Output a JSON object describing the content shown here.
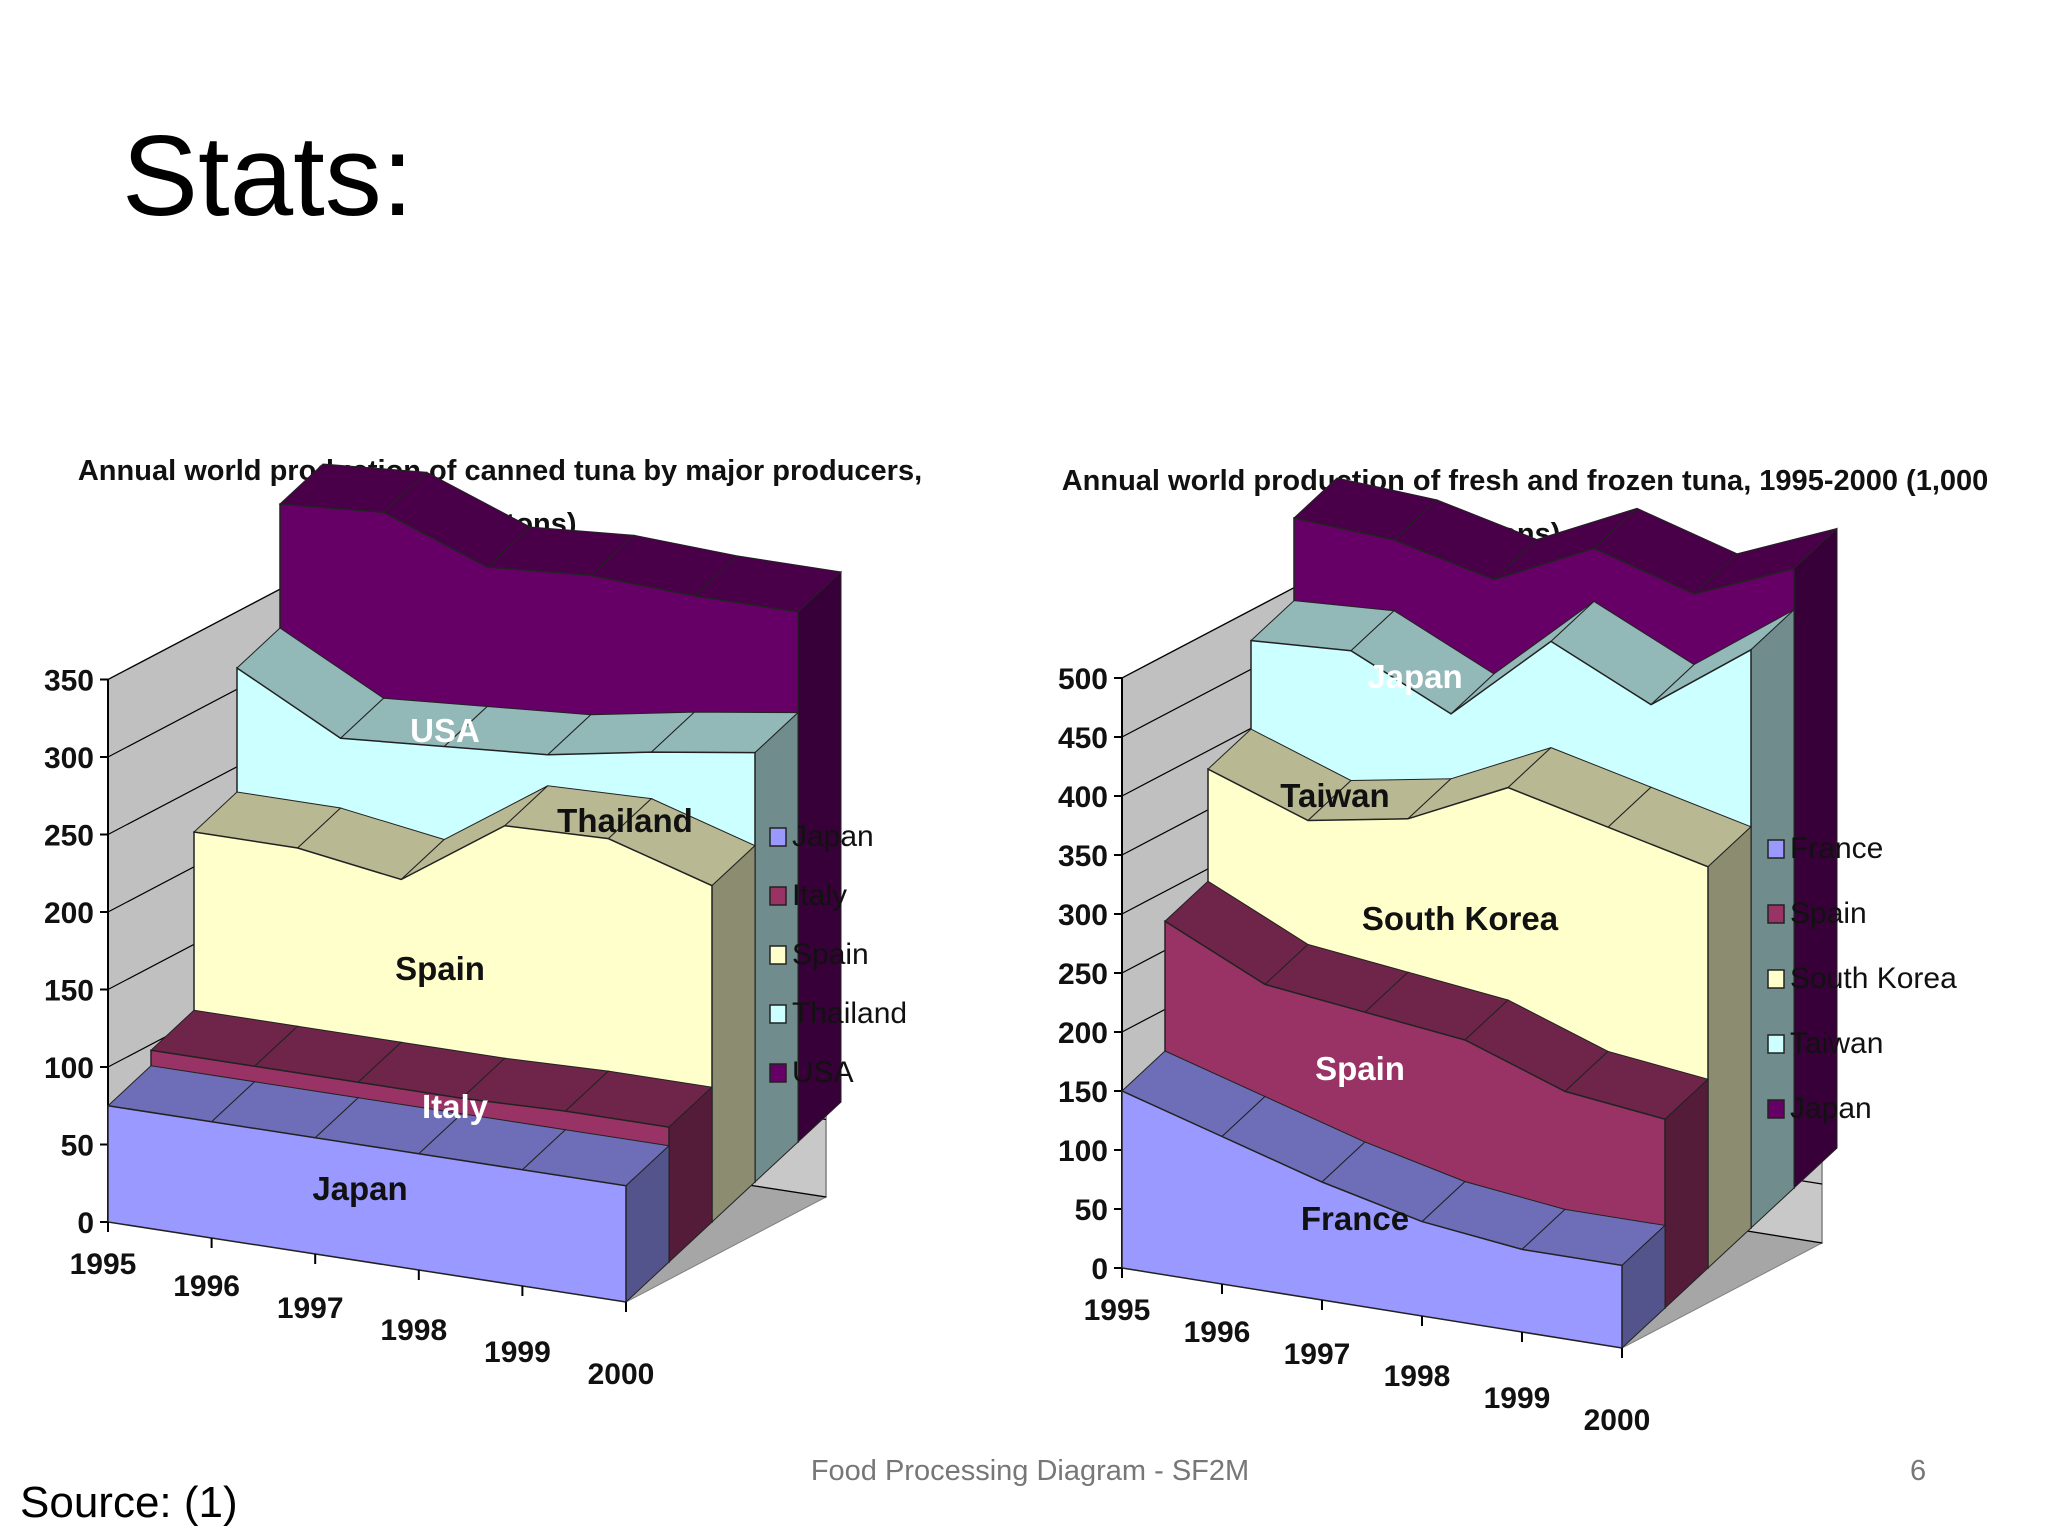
{
  "slide": {
    "title": "Stats:",
    "footer": "Food Processing Diagram - SF2M",
    "page_number": "6",
    "source": "Source: (1)"
  },
  "chart_data": [
    {
      "type": "area",
      "variant": "3d-stacked-area",
      "title": "Annual world production of canned tuna by major producers, (1000 tons)",
      "x": [
        "1995",
        "1996",
        "1997",
        "1998",
        "1999",
        "2000"
      ],
      "ylim": [
        0,
        350
      ],
      "yticks": [
        "0",
        "50",
        "100",
        "150",
        "200",
        "250",
        "300",
        "350"
      ],
      "grid": true,
      "legend_position": "right",
      "series": [
        {
          "name": "Japan",
          "color": "#9999ff",
          "values": [
            75,
            75,
            75,
            75,
            75,
            75
          ]
        },
        {
          "name": "Italy",
          "color": "#993366",
          "values": [
            10,
            10,
            10,
            10,
            12,
            12
          ]
        },
        {
          "name": "Spain",
          "color": "#ffffcc",
          "values": [
            115,
            115,
            105,
            150,
            150,
            130
          ]
        },
        {
          "name": "Thailand",
          "color": "#ccffff",
          "values": [
            80,
            45,
            60,
            20,
            30,
            60
          ]
        },
        {
          "name": "USA",
          "color": "#660066",
          "values": [
            80,
            120,
            90,
            90,
            75,
            65
          ]
        }
      ],
      "area_labels": [
        "Japan",
        "Italy",
        "Spain",
        "Thailand",
        "USA"
      ]
    },
    {
      "type": "area",
      "variant": "3d-stacked-area",
      "title": "Annual world production of fresh and frozen tuna, 1995-2000 (1,000 tons)",
      "x": [
        "1995",
        "1996",
        "1997",
        "1998",
        "1999",
        "2000"
      ],
      "ylim": [
        0,
        500
      ],
      "yticks": [
        "0",
        "50",
        "100",
        "150",
        "200",
        "250",
        "300",
        "350",
        "400",
        "450",
        "500"
      ],
      "grid": true,
      "legend_position": "right",
      "series": [
        {
          "name": "France",
          "color": "#9999ff",
          "values": [
            150,
            125,
            100,
            80,
            70,
            70
          ]
        },
        {
          "name": "Spain",
          "color": "#993366",
          "values": [
            110,
            95,
            110,
            120,
            100,
            90
          ]
        },
        {
          "name": "South Korea",
          "color": "#ffffcc",
          "values": [
            95,
            105,
            130,
            180,
            190,
            180
          ]
        },
        {
          "name": "Taiwan",
          "color": "#ccffff",
          "values": [
            75,
            110,
            55,
            90,
            70,
            150
          ]
        },
        {
          "name": "Japan",
          "color": "#660066",
          "values": [
            70,
            60,
            80,
            45,
            60,
            35
          ]
        }
      ],
      "area_labels": [
        "Japan",
        "Taiwan",
        "South Korea",
        "Spain",
        "France"
      ]
    }
  ]
}
